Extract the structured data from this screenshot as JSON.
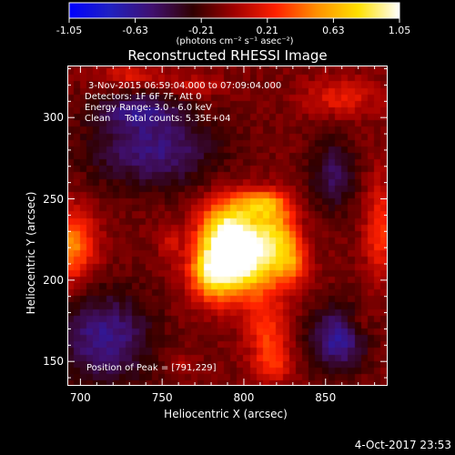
{
  "colorbar": {
    "ticks": [
      "-1.05",
      "-0.63",
      "-0.21",
      "0.21",
      "0.63",
      "1.05"
    ],
    "units": "(photons cm⁻² s⁻¹ asec⁻²)",
    "colors": [
      "#0000ff",
      "#2020c0",
      "#401070",
      "#300000",
      "#a00000",
      "#ff2000",
      "#ff9000",
      "#ffe000",
      "#ffffff"
    ]
  },
  "chart_data": {
    "type": "heatmap",
    "title": "Reconstructed RHESSI Image",
    "xlabel": "Heliocentric X (arcsec)",
    "ylabel": "Heliocentric Y (arcsec)",
    "xlim": [
      692,
      888
    ],
    "ylim": [
      135,
      332
    ],
    "x_ticks": [
      700,
      750,
      800,
      850
    ],
    "y_ticks": [
      150,
      200,
      250,
      300
    ],
    "x_tick_labels": [
      "700",
      "750",
      "800",
      "850"
    ],
    "y_tick_labels": [
      "150",
      "200",
      "250",
      "300"
    ],
    "zlim": [
      -1.05,
      1.05
    ],
    "pixel_size_arcsec": 4,
    "annotations": [
      "3-Nov-2015 06:59:04.000 to 07:09:04.000",
      "Detectors: 1F 6F 7F, Att 0",
      "Energy Range: 3.0 - 6.0 keV",
      "Clean     Total counts: 5.35E+04"
    ],
    "peak_label": "Position of Peak = [791,229]",
    "peak": {
      "x": 791,
      "y": 229
    },
    "sources": [
      {
        "x": 791,
        "y": 229,
        "sx": 12,
        "sy": 15,
        "amp": 1.05
      },
      {
        "x": 805,
        "y": 211,
        "sx": 16,
        "sy": 16,
        "amp": 0.85
      },
      {
        "x": 781,
        "y": 205,
        "sx": 10,
        "sy": 12,
        "amp": 0.75
      },
      {
        "x": 820,
        "y": 230,
        "sx": 9,
        "sy": 13,
        "amp": 0.55
      },
      {
        "x": 812,
        "y": 248,
        "sx": 10,
        "sy": 6,
        "amp": 0.55
      },
      {
        "x": 830,
        "y": 212,
        "sx": 6,
        "sy": 9,
        "amp": 0.35
      },
      {
        "x": 815,
        "y": 168,
        "sx": 9,
        "sy": 12,
        "amp": 0.38
      },
      {
        "x": 818,
        "y": 148,
        "sx": 8,
        "sy": 8,
        "amp": 0.3
      },
      {
        "x": 695,
        "y": 222,
        "sx": 10,
        "sy": 16,
        "amp": 0.6
      },
      {
        "x": 884,
        "y": 232,
        "sx": 7,
        "sy": 22,
        "amp": 0.38
      },
      {
        "x": 732,
        "y": 326,
        "sx": 14,
        "sy": 5,
        "amp": 0.28
      },
      {
        "x": 770,
        "y": 320,
        "sx": 12,
        "sy": 4,
        "amp": 0.22
      },
      {
        "x": 860,
        "y": 313,
        "sx": 16,
        "sy": 8,
        "amp": 0.3
      },
      {
        "x": 755,
        "y": 225,
        "sx": 5,
        "sy": 8,
        "amp": 0.2
      },
      {
        "x": 870,
        "y": 175,
        "sx": 5,
        "sy": 6,
        "amp": 0.2
      },
      {
        "x": 760,
        "y": 150,
        "sx": 5,
        "sy": 5,
        "amp": 0.18
      },
      {
        "x": 715,
        "y": 165,
        "sx": 20,
        "sy": 20,
        "amp": -0.5
      },
      {
        "x": 745,
        "y": 280,
        "sx": 28,
        "sy": 16,
        "amp": -0.45
      },
      {
        "x": 858,
        "y": 165,
        "sx": 12,
        "sy": 14,
        "amp": -0.55
      },
      {
        "x": 735,
        "y": 305,
        "sx": 18,
        "sy": 8,
        "amp": -0.4
      },
      {
        "x": 855,
        "y": 265,
        "sx": 10,
        "sy": 16,
        "amp": -0.35
      }
    ]
  },
  "timestamp": "4-Oct-2017 23:53"
}
